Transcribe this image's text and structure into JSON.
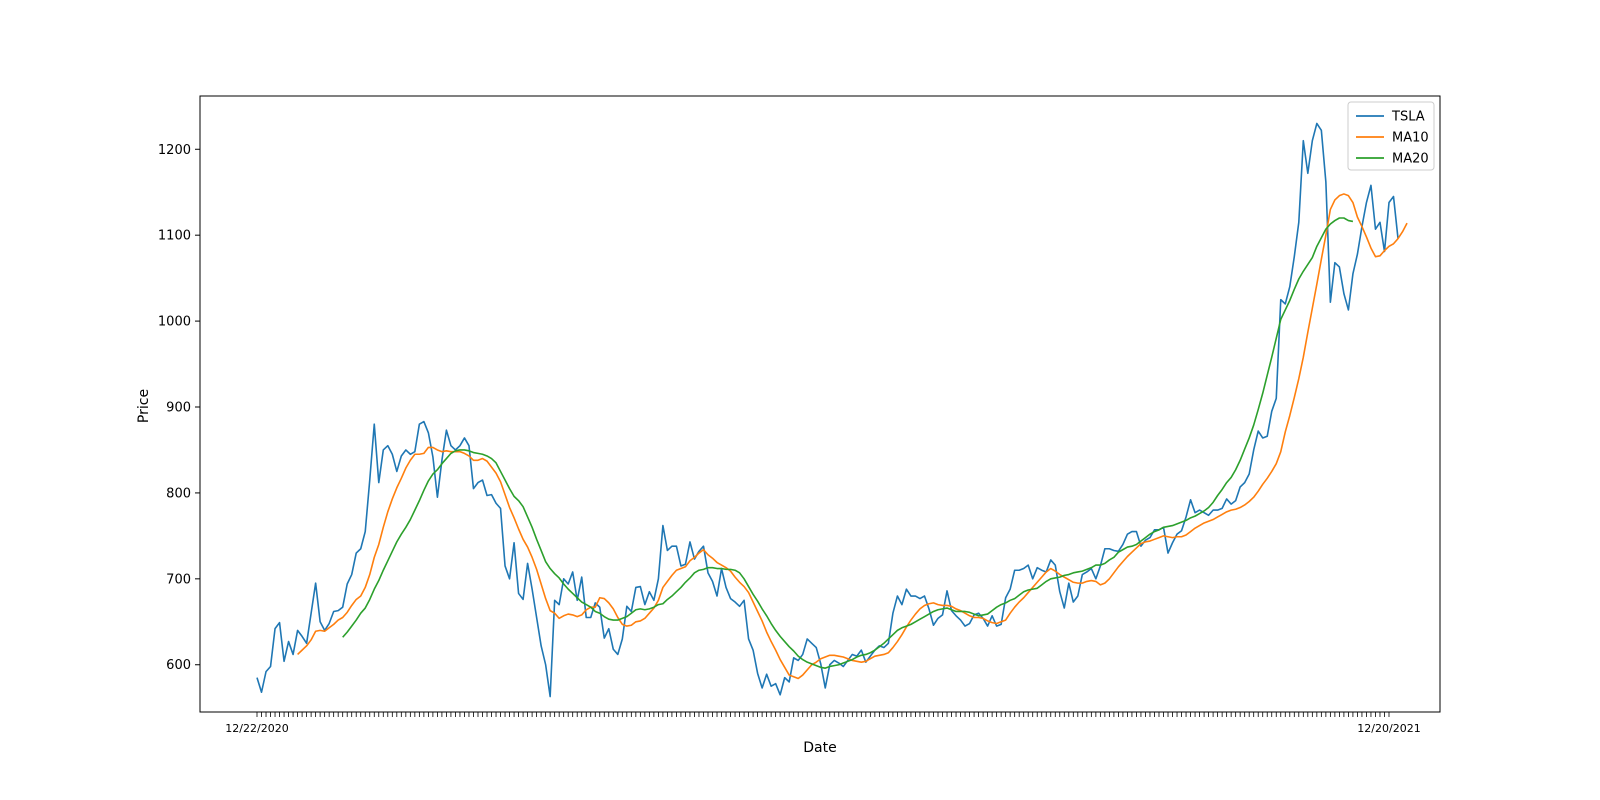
{
  "chart_data": {
    "type": "line",
    "title": "",
    "xlabel": "Date",
    "ylabel": "Price",
    "ylim": [
      545,
      1262
    ],
    "yticks": [
      600,
      700,
      800,
      900,
      1000,
      1100,
      1200
    ],
    "legend_position": "top-right",
    "grid": false,
    "x_tick_labels_overlapping": true,
    "x_tick_labels_visible_end": [
      "12/22/2020",
      "12/20/2021"
    ],
    "n_points": 252,
    "series": [
      {
        "name": "TSLA",
        "color": "#1f77b4",
        "values": [
          585,
          568,
          592,
          598,
          642,
          649,
          604,
          627,
          612,
          640,
          633,
          625,
          660,
          695,
          650,
          640,
          648,
          662,
          663,
          667,
          694,
          705,
          730,
          735,
          755,
          815,
          880,
          812,
          850,
          855,
          845,
          825,
          843,
          850,
          845,
          848,
          880,
          883,
          870,
          842,
          795,
          838,
          873,
          855,
          850,
          855,
          864,
          855,
          805,
          812,
          815,
          797,
          798,
          788,
          782,
          715,
          700,
          742,
          683,
          676,
          718,
          688,
          655,
          622,
          600,
          563,
          675,
          670,
          700,
          694,
          708,
          675,
          702,
          655,
          655,
          672,
          667,
          631,
          642,
          618,
          612,
          630,
          668,
          662,
          690,
          691,
          670,
          685,
          675,
          700,
          762,
          733,
          738,
          738,
          715,
          717,
          743,
          723,
          732,
          738,
          707,
          697,
          680,
          712,
          690,
          677,
          673,
          668,
          675,
          630,
          617,
          590,
          573,
          589,
          575,
          578,
          565,
          585,
          580,
          608,
          605,
          612,
          630,
          625,
          620,
          601,
          573,
          600,
          605,
          602,
          598,
          605,
          612,
          610,
          617,
          603,
          610,
          617,
          622,
          620,
          625,
          660,
          680,
          670,
          688,
          680,
          680,
          677,
          680,
          665,
          646,
          654,
          658,
          686,
          663,
          657,
          652,
          645,
          648,
          658,
          660,
          654,
          645,
          657,
          645,
          647,
          678,
          688,
          710,
          710,
          712,
          716,
          700,
          713,
          710,
          708,
          722,
          716,
          685,
          666,
          695,
          673,
          680,
          705,
          708,
          712,
          700,
          715,
          735,
          735,
          733,
          732,
          740,
          752,
          755,
          755,
          738,
          745,
          748,
          757,
          757,
          760,
          730,
          742,
          752,
          756,
          772,
          792,
          777,
          780,
          777,
          774,
          780,
          780,
          782,
          793,
          787,
          791,
          807,
          812,
          822,
          850,
          872,
          864,
          866,
          895,
          910,
          1025,
          1020,
          1040,
          1075,
          1115,
          1210,
          1172,
          1210,
          1230,
          1222,
          1162,
          1022,
          1068,
          1063,
          1032,
          1013,
          1055,
          1078,
          1110,
          1138,
          1158,
          1107,
          1115,
          1081,
          1138,
          1145,
          1096
        ]
      },
      {
        "name": "MA10",
        "color": "#ff7f0e",
        "values": [
          null,
          null,
          null,
          null,
          null,
          null,
          null,
          null,
          null,
          612,
          617,
          622,
          629,
          639,
          640,
          639,
          643,
          647,
          652,
          655,
          661,
          669,
          676,
          680,
          690,
          705,
          725,
          740,
          760,
          778,
          793,
          806,
          817,
          829,
          838,
          845,
          845,
          846,
          853,
          853,
          850,
          848,
          849,
          848,
          848,
          848,
          846,
          843,
          838,
          838,
          840,
          837,
          830,
          823,
          813,
          798,
          783,
          771,
          758,
          746,
          737,
          725,
          711,
          694,
          677,
          663,
          660,
          654,
          657,
          659,
          658,
          656,
          658,
          664,
          667,
          667,
          678,
          677,
          672,
          665,
          655,
          647,
          645,
          646,
          650,
          651,
          654,
          660,
          666,
          675,
          690,
          697,
          704,
          710,
          712,
          714,
          721,
          725,
          730,
          734,
          728,
          724,
          719,
          716,
          713,
          709,
          702,
          696,
          691,
          684,
          673,
          662,
          651,
          638,
          627,
          617,
          606,
          597,
          588,
          586,
          584,
          588,
          594,
          600,
          603,
          607,
          609,
          611,
          611,
          610,
          609,
          607,
          605,
          604,
          603,
          604,
          607,
          610,
          611,
          612,
          614,
          620,
          627,
          635,
          644,
          652,
          659,
          665,
          669,
          671,
          672,
          670,
          669,
          669,
          668,
          665,
          663,
          660,
          657,
          655,
          655,
          654,
          651,
          649,
          648,
          650,
          652,
          660,
          667,
          673,
          678,
          684,
          690,
          696,
          702,
          708,
          712,
          709,
          705,
          702,
          699,
          696,
          695,
          695,
          697,
          698,
          697,
          693,
          695,
          700,
          707,
          714,
          720,
          726,
          731,
          736,
          741,
          743,
          744,
          746,
          748,
          750,
          749,
          748,
          749,
          749,
          751,
          755,
          759,
          762,
          765,
          767,
          769,
          772,
          775,
          778,
          780,
          781,
          783,
          786,
          790,
          795,
          802,
          810,
          817,
          825,
          834,
          848,
          871,
          890,
          911,
          933,
          958,
          987,
          1015,
          1043,
          1072,
          1100,
          1130,
          1141,
          1146,
          1148,
          1146,
          1138,
          1121,
          1110,
          1098,
          1085,
          1075,
          1076,
          1082,
          1087,
          1090,
          1096,
          1104,
          1114
        ]
      },
      {
        "name": "MA20",
        "color": "#2ca02c",
        "values": [
          null,
          null,
          null,
          null,
          null,
          null,
          null,
          null,
          null,
          null,
          null,
          null,
          null,
          null,
          null,
          null,
          null,
          null,
          null,
          632,
          638,
          645,
          652,
          660,
          666,
          676,
          688,
          698,
          710,
          721,
          732,
          743,
          752,
          760,
          769,
          780,
          791,
          803,
          814,
          822,
          827,
          834,
          840,
          846,
          849,
          850,
          850,
          849,
          847,
          846,
          845,
          843,
          840,
          835,
          825,
          815,
          805,
          796,
          791,
          784,
          772,
          760,
          746,
          733,
          720,
          712,
          706,
          701,
          694,
          688,
          683,
          678,
          673,
          670,
          667,
          662,
          660,
          656,
          653,
          652,
          652,
          654,
          656,
          660,
          664,
          665,
          664,
          665,
          667,
          670,
          671,
          676,
          680,
          685,
          690,
          696,
          701,
          707,
          710,
          711,
          713,
          713,
          712,
          712,
          711,
          711,
          710,
          707,
          700,
          691,
          682,
          674,
          665,
          657,
          648,
          640,
          633,
          627,
          621,
          616,
          610,
          606,
          603,
          601,
          599,
          597,
          596,
          598,
          599,
          600,
          602,
          604,
          606,
          609,
          611,
          612,
          614,
          617,
          621,
          625,
          630,
          635,
          640,
          643,
          645,
          647,
          650,
          653,
          656,
          659,
          662,
          664,
          665,
          666,
          664,
          662,
          662,
          662,
          661,
          659,
          657,
          658,
          659,
          663,
          667,
          670,
          672,
          675,
          677,
          681,
          685,
          687,
          688,
          689,
          693,
          697,
          700,
          701,
          702,
          704,
          705,
          707,
          708,
          709,
          711,
          713,
          716,
          716,
          718,
          722,
          725,
          731,
          734,
          737,
          738,
          740,
          744,
          748,
          752,
          755,
          757,
          760,
          761,
          762,
          764,
          766,
          768,
          771,
          773,
          776,
          779,
          783,
          789,
          797,
          804,
          812,
          818,
          827,
          838,
          851,
          864,
          879,
          897,
          916,
          937,
          958,
          980,
          1002,
          1013,
          1024,
          1037,
          1049,
          1058,
          1066,
          1074,
          1087,
          1097,
          1107,
          1113,
          1117,
          1120,
          1120,
          1117,
          1116
        ]
      }
    ]
  }
}
